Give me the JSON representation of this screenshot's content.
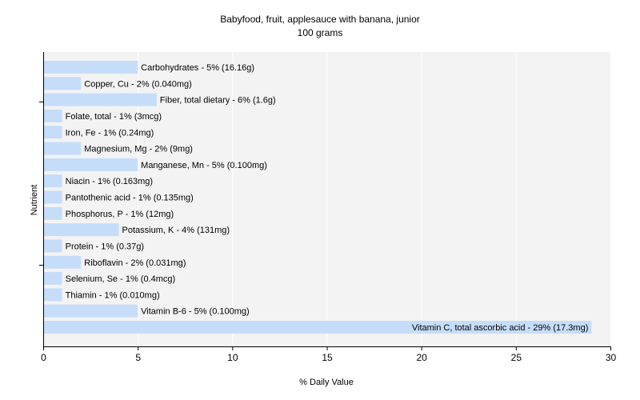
{
  "header": {
    "title": "Babyfood, fruit, applesauce with banana, junior",
    "subtitle": "100 grams"
  },
  "colors": {
    "bar": "#c6ddfa",
    "plot_background": "#f3f3f3",
    "gridline": "#ffffff",
    "axis": "#000000"
  },
  "chart_data": {
    "type": "bar",
    "orientation": "horizontal",
    "title": "Babyfood, fruit, applesauce with banana, junior",
    "subtitle": "100 grams",
    "xlabel": "% Daily Value",
    "ylabel": "Nutrient",
    "xlim": [
      0,
      30
    ],
    "xticks": [
      0,
      5,
      10,
      15,
      20,
      25,
      30
    ],
    "grid": true,
    "legend": "none",
    "categories": [
      "Carbohydrates",
      "Copper, Cu",
      "Fiber, total dietary",
      "Folate, total",
      "Iron, Fe",
      "Magnesium, Mg",
      "Manganese, Mn",
      "Niacin",
      "Pantothenic acid",
      "Phosphorus, P",
      "Potassium, K",
      "Protein",
      "Riboflavin",
      "Selenium, Se",
      "Thiamin",
      "Vitamin B-6",
      "Vitamin C, total ascorbic acid"
    ],
    "values": [
      5,
      2,
      6,
      1,
      1,
      2,
      5,
      1,
      1,
      1,
      4,
      1,
      2,
      1,
      1,
      5,
      29
    ],
    "labels": [
      "Carbohydrates - 5% (16.16g)",
      "Copper, Cu - 2% (0.040mg)",
      "Fiber, total dietary - 6% (1.6g)",
      "Folate, total - 1% (3mcg)",
      "Iron, Fe - 1% (0.24mg)",
      "Magnesium, Mg - 2% (9mg)",
      "Manganese, Mn - 5% (0.100mg)",
      "Niacin - 1% (0.163mg)",
      "Pantothenic acid - 1% (0.135mg)",
      "Phosphorus, P - 1% (12mg)",
      "Potassium, K - 4% (131mg)",
      "Protein - 1% (0.37g)",
      "Riboflavin - 2% (0.031mg)",
      "Selenium, Se - 1% (0.4mcg)",
      "Thiamin - 1% (0.010mg)",
      "Vitamin B-6 - 5% (0.100mg)",
      "Vitamin C, total ascorbic acid - 29% (17.3mg)"
    ]
  }
}
